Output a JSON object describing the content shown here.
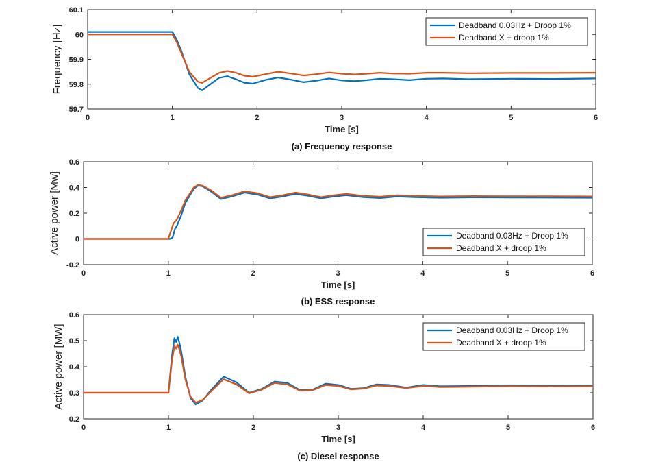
{
  "colors": {
    "series1": "#0072BD",
    "series2": "#D95319",
    "axis": "#262626"
  },
  "chart_data": [
    {
      "type": "line",
      "title": "",
      "caption": "(a) Frequency response",
      "xlabel": "Time [s]",
      "ylabel": "Frequency [Hz]",
      "xlim": [
        0,
        6
      ],
      "ylim": [
        59.7,
        60.1
      ],
      "xticks": [
        0,
        1,
        2,
        3,
        4,
        5,
        6
      ],
      "yticks": [
        59.7,
        59.8,
        59.9,
        60,
        60.1
      ],
      "yticklabels": [
        "59.7",
        "59.8",
        "59.9",
        "60",
        "60.1"
      ],
      "grid": false,
      "legend_position": "top-right",
      "series": [
        {
          "name": "Deadband 0.03Hz + Droop 1%",
          "color": "#0072BD",
          "x": [
            0,
            1.0,
            1.05,
            1.1,
            1.2,
            1.3,
            1.35,
            1.45,
            1.55,
            1.65,
            1.75,
            1.85,
            1.95,
            2.1,
            2.25,
            2.4,
            2.55,
            2.7,
            2.85,
            3.0,
            3.15,
            3.3,
            3.45,
            3.6,
            3.8,
            4.0,
            4.2,
            4.5,
            5.0,
            5.5,
            6.0
          ],
          "y": [
            60.01,
            60.01,
            59.98,
            59.94,
            59.84,
            59.785,
            59.775,
            59.8,
            59.825,
            59.832,
            59.82,
            59.806,
            59.802,
            59.817,
            59.827,
            59.818,
            59.808,
            59.814,
            59.823,
            59.815,
            59.812,
            59.816,
            59.822,
            59.82,
            59.816,
            59.822,
            59.823,
            59.82,
            59.822,
            59.821,
            59.823
          ]
        },
        {
          "name": "Deadband X + droop 1%",
          "color": "#D95319",
          "x": [
            0,
            1.0,
            1.05,
            1.1,
            1.2,
            1.3,
            1.35,
            1.45,
            1.55,
            1.65,
            1.75,
            1.85,
            1.95,
            2.1,
            2.25,
            2.4,
            2.55,
            2.7,
            2.85,
            3.0,
            3.15,
            3.3,
            3.45,
            3.6,
            3.8,
            4.0,
            4.2,
            4.5,
            5.0,
            5.5,
            6.0
          ],
          "y": [
            60.0,
            60.0,
            59.97,
            59.93,
            59.85,
            59.81,
            59.805,
            59.825,
            59.845,
            59.853,
            59.846,
            59.834,
            59.83,
            59.84,
            59.85,
            59.843,
            59.835,
            59.84,
            59.847,
            59.842,
            59.839,
            59.842,
            59.846,
            59.843,
            59.842,
            59.846,
            59.846,
            59.844,
            59.845,
            59.845,
            59.846
          ]
        }
      ]
    },
    {
      "type": "line",
      "title": "",
      "caption": "(b) ESS response",
      "xlabel": "Time [s]",
      "ylabel": "Active power [Mw]",
      "xlim": [
        0,
        6
      ],
      "ylim": [
        -0.2,
        0.6
      ],
      "xticks": [
        0,
        1,
        2,
        3,
        4,
        5,
        6
      ],
      "yticks": [
        -0.2,
        0,
        0.2,
        0.4,
        0.6
      ],
      "yticklabels": [
        "-0.2",
        "0",
        "0.2",
        "0.4",
        "0.6"
      ],
      "grid": false,
      "legend_position": "bottom-right",
      "series": [
        {
          "name": "Deadband 0.03Hz + Droop 1%",
          "color": "#0072BD",
          "x": [
            0,
            1.02,
            1.05,
            1.08,
            1.1,
            1.15,
            1.2,
            1.3,
            1.35,
            1.4,
            1.5,
            1.62,
            1.75,
            1.9,
            2.05,
            2.2,
            2.35,
            2.5,
            2.65,
            2.8,
            2.95,
            3.1,
            3.3,
            3.5,
            3.7,
            3.9,
            4.2,
            4.6,
            5.0,
            5.5,
            6.0
          ],
          "y": [
            0,
            0,
            0.01,
            0.08,
            0.1,
            0.18,
            0.28,
            0.39,
            0.415,
            0.41,
            0.37,
            0.31,
            0.33,
            0.36,
            0.345,
            0.315,
            0.33,
            0.35,
            0.335,
            0.315,
            0.33,
            0.34,
            0.325,
            0.318,
            0.33,
            0.325,
            0.32,
            0.323,
            0.322,
            0.321,
            0.32
          ]
        },
        {
          "name": "Deadband X + droop 1%",
          "color": "#D95319",
          "x": [
            0,
            1.0,
            1.03,
            1.06,
            1.1,
            1.15,
            1.2,
            1.3,
            1.35,
            1.4,
            1.5,
            1.62,
            1.75,
            1.9,
            2.05,
            2.2,
            2.35,
            2.5,
            2.65,
            2.8,
            2.95,
            3.1,
            3.3,
            3.5,
            3.7,
            3.9,
            4.2,
            4.6,
            5.0,
            5.5,
            6.0
          ],
          "y": [
            0,
            0,
            0.06,
            0.12,
            0.15,
            0.22,
            0.3,
            0.4,
            0.42,
            0.415,
            0.38,
            0.32,
            0.34,
            0.37,
            0.355,
            0.325,
            0.34,
            0.36,
            0.345,
            0.325,
            0.34,
            0.35,
            0.335,
            0.328,
            0.34,
            0.335,
            0.33,
            0.333,
            0.332,
            0.331,
            0.33
          ]
        }
      ]
    },
    {
      "type": "line",
      "title": "",
      "caption": "(c) Diesel response",
      "xlabel": "Time [s]",
      "ylabel": "Active power [MW]",
      "xlim": [
        0,
        6
      ],
      "ylim": [
        0.2,
        0.6
      ],
      "xticks": [
        0,
        1,
        2,
        3,
        4,
        5,
        6
      ],
      "yticks": [
        0.2,
        0.3,
        0.4,
        0.5,
        0.6
      ],
      "yticklabels": [
        "0.2",
        "0.3",
        "0.4",
        "0.5",
        "0.6"
      ],
      "grid": false,
      "legend_position": "top-right",
      "series": [
        {
          "name": "Deadband 0.03Hz + Droop 1%",
          "color": "#0072BD",
          "x": [
            0,
            1.0,
            1.04,
            1.07,
            1.09,
            1.11,
            1.13,
            1.15,
            1.2,
            1.26,
            1.32,
            1.4,
            1.5,
            1.65,
            1.8,
            1.95,
            2.1,
            2.25,
            2.4,
            2.55,
            2.7,
            2.85,
            3.0,
            3.15,
            3.3,
            3.45,
            3.6,
            3.8,
            4.0,
            4.2,
            4.5,
            5.0,
            5.5,
            6.0
          ],
          "y": [
            0.3,
            0.3,
            0.44,
            0.51,
            0.495,
            0.515,
            0.49,
            0.46,
            0.36,
            0.28,
            0.255,
            0.27,
            0.31,
            0.362,
            0.34,
            0.3,
            0.315,
            0.343,
            0.338,
            0.31,
            0.312,
            0.335,
            0.33,
            0.315,
            0.318,
            0.332,
            0.33,
            0.32,
            0.33,
            0.325,
            0.326,
            0.328,
            0.327,
            0.328
          ]
        },
        {
          "name": "Deadband X + droop 1%",
          "color": "#D95319",
          "x": [
            0,
            1.0,
            1.04,
            1.07,
            1.09,
            1.11,
            1.13,
            1.15,
            1.2,
            1.26,
            1.32,
            1.4,
            1.5,
            1.65,
            1.8,
            1.95,
            2.1,
            2.25,
            2.4,
            2.55,
            2.7,
            2.85,
            3.0,
            3.15,
            3.3,
            3.45,
            3.6,
            3.8,
            4.0,
            4.2,
            4.5,
            5.0,
            5.5,
            6.0
          ],
          "y": [
            0.3,
            0.3,
            0.42,
            0.48,
            0.47,
            0.485,
            0.465,
            0.44,
            0.35,
            0.285,
            0.262,
            0.272,
            0.305,
            0.352,
            0.332,
            0.298,
            0.312,
            0.338,
            0.332,
            0.308,
            0.31,
            0.33,
            0.326,
            0.313,
            0.316,
            0.328,
            0.326,
            0.318,
            0.326,
            0.322,
            0.323,
            0.325,
            0.324,
            0.325
          ]
        }
      ]
    }
  ]
}
